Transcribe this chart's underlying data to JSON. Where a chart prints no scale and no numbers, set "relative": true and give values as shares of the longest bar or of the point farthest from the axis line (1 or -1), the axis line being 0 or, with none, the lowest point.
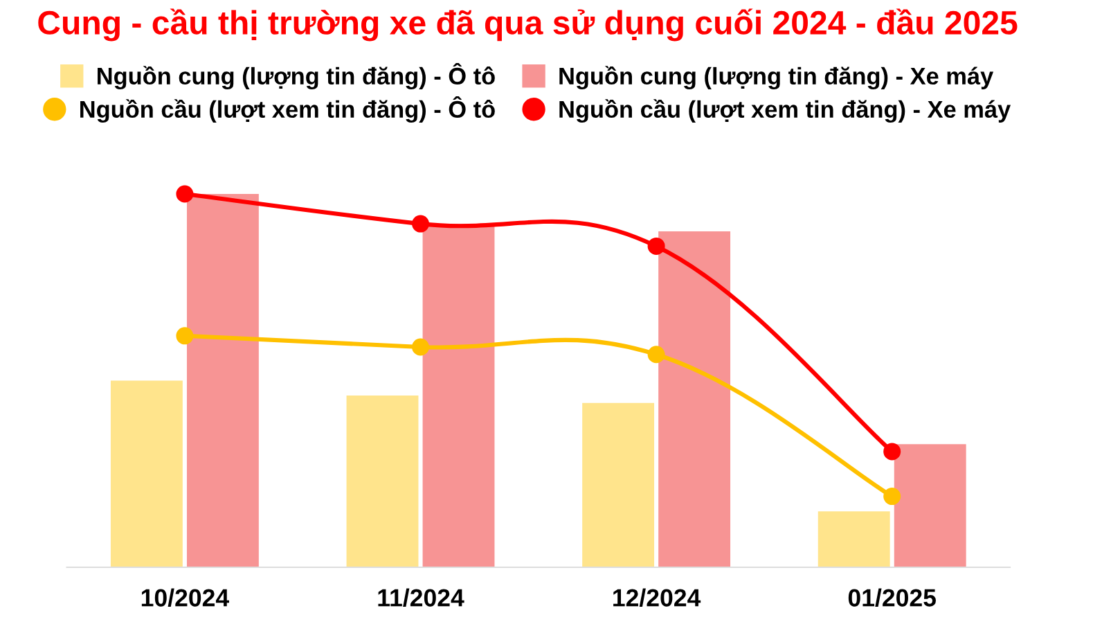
{
  "chart_data": {
    "type": "bar",
    "title": "Cung - cầu thị trường xe đã qua sử dụng cuối 2024 - đầu 2025",
    "relative": true,
    "legend": "top",
    "marker": "circle",
    "categories": [
      "10/2024",
      "11/2024",
      "12/2024",
      "01/2025"
    ],
    "series": [
      {
        "name": "Nguồn cung (lượng tin đăng) - Ô tô",
        "color": "#ffe48c",
        "values": [
          0.5,
          0.46,
          0.44,
          0.15
        ]
      },
      {
        "name": "Nguồn cung (lượng tin đăng) - Xe máy",
        "color": "#f79494",
        "values": [
          1.0,
          0.92,
          0.9,
          0.33
        ]
      },
      {
        "name": "Nguồn cầu (lượt xem tin đăng) - Ô tô",
        "type": "line",
        "color": "#ffc000",
        "values": [
          0.62,
          0.59,
          0.57,
          0.19
        ]
      },
      {
        "name": "Nguồn cầu (lượt xem tin đăng) - Xe máy",
        "type": "line",
        "color": "#ff0000",
        "values": [
          1.0,
          0.92,
          0.86,
          0.31
        ]
      }
    ]
  }
}
